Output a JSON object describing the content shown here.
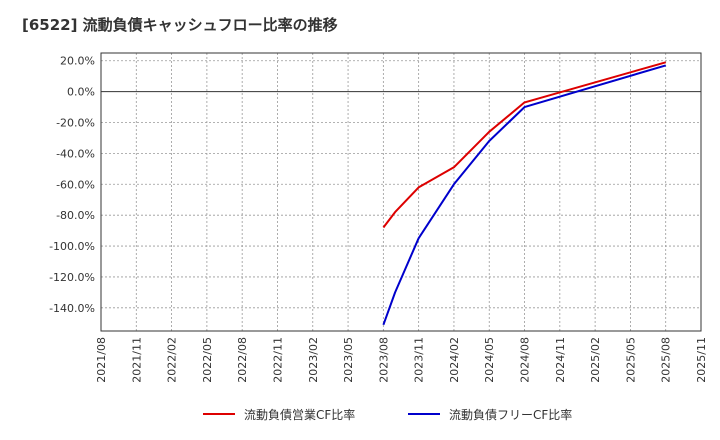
{
  "chart_data": {
    "type": "line",
    "title": "[6522]  流動負債キャッシュフロー比率の推移",
    "xlabel": "",
    "ylabel": "",
    "ylim": [
      -155,
      25
    ],
    "yticks": [
      20,
      0,
      -20,
      -40,
      -60,
      -80,
      -100,
      -120,
      -140
    ],
    "ytick_labels": [
      "20.0%",
      "0.0%",
      "-20.0%",
      "-40.0%",
      "-60.0%",
      "-80.0%",
      "-100.0%",
      "-120.0%",
      "-140.0%"
    ],
    "x_tick_labels": [
      "2021/08",
      "2021/11",
      "2022/02",
      "2022/05",
      "2022/08",
      "2022/11",
      "2023/02",
      "2023/05",
      "2023/08",
      "2023/11",
      "2024/02",
      "2024/05",
      "2024/08",
      "2024/11",
      "2025/02",
      "2025/05",
      "2025/08",
      "2025/11"
    ],
    "grid": true,
    "legend_position": "bottom",
    "series": [
      {
        "name": "流動負債営業CF比率",
        "color": "#dd0000",
        "x": [
          "2023/08",
          "2023/09",
          "2023/11",
          "2024/02",
          "2024/05",
          "2024/08",
          "2025/08"
        ],
        "values": [
          -88,
          -78,
          -62,
          -49,
          -26,
          -7,
          19
        ]
      },
      {
        "name": "流動負債フリーCF比率",
        "color": "#0000cc",
        "x": [
          "2023/08",
          "2023/09",
          "2023/11",
          "2024/02",
          "2024/05",
          "2024/08",
          "2025/08"
        ],
        "values": [
          -151,
          -130,
          -95,
          -60,
          -32,
          -10,
          17
        ]
      }
    ]
  }
}
